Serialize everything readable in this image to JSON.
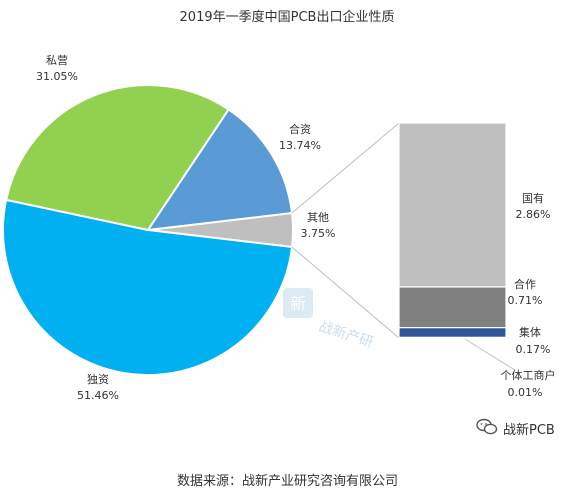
{
  "chart_data": {
    "type": "bar-of-pie",
    "title": "2019年一季度中国PCB出口企业性质",
    "pie": [
      {
        "name": "独资",
        "value": 51.46,
        "color": "#00b0f0"
      },
      {
        "name": "私营",
        "value": 31.05,
        "color": "#92d050"
      },
      {
        "name": "合资",
        "value": 13.74,
        "color": "#5b9bd5"
      },
      {
        "name": "其他",
        "value": 3.75,
        "color": "#bfbfbf"
      }
    ],
    "pie_values_display": [
      "51.46%",
      "31.05%",
      "13.74%",
      "3.75%"
    ],
    "bar": [
      {
        "name": "国有",
        "value": 2.86,
        "color": "#bfbfbf"
      },
      {
        "name": "合作",
        "value": 0.71,
        "color": "#808080"
      },
      {
        "name": "集体",
        "value": 0.17,
        "color": "#2e5597"
      },
      {
        "name": "个体工商户",
        "value": 0.01,
        "color": "#1f3864"
      }
    ],
    "bar_values_display": [
      "2.86%",
      "0.71%",
      "0.17%",
      "0.01%"
    ]
  },
  "source_text": "数据来源：战新产业研究咨询有限公司",
  "watermark": {
    "logo_text": "新",
    "text": "战新产研",
    "brand": "战新PCB"
  }
}
